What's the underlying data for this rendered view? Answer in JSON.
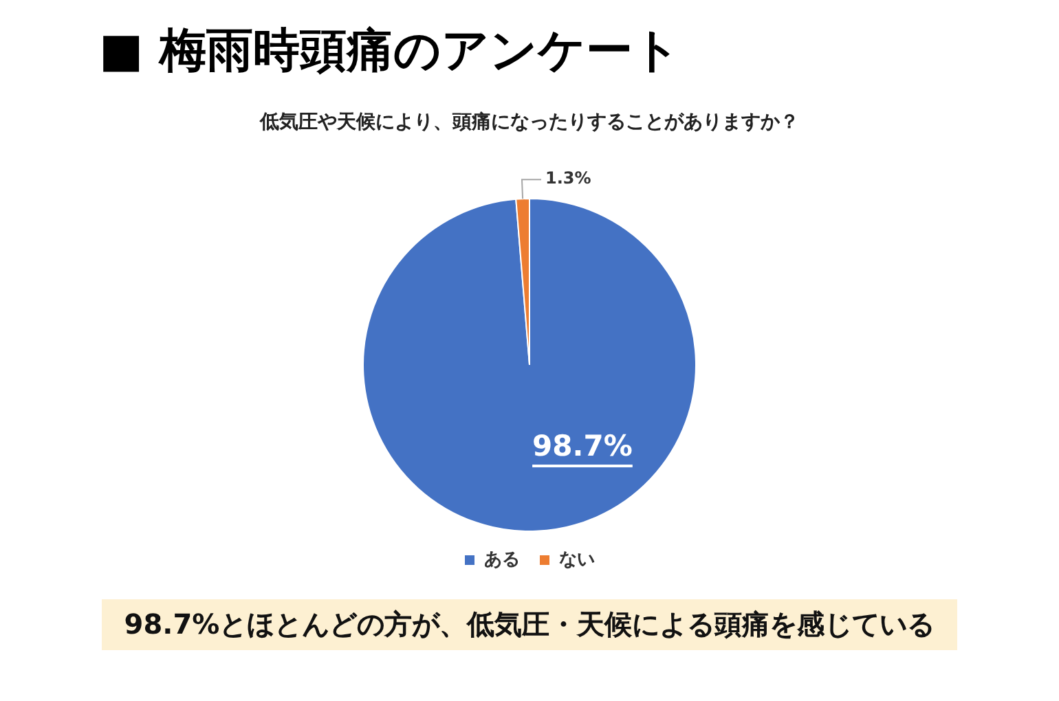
{
  "chart_data": {
    "type": "pie",
    "title": "■ 梅雨時頭痛のアンケート",
    "subtitle": "低気圧や天候により、頭痛になったりすることがありますか？",
    "categories": [
      "ある",
      "ない"
    ],
    "values": [
      98.7,
      1.3
    ],
    "colors": [
      "#4472c4",
      "#ed7d31"
    ],
    "value_labels": [
      "98.7%",
      "1.3%"
    ],
    "legend": "bottom",
    "annotations": [
      "98.7%とほとんどの方が、低気圧・天候による頭痛を感じている"
    ]
  }
}
